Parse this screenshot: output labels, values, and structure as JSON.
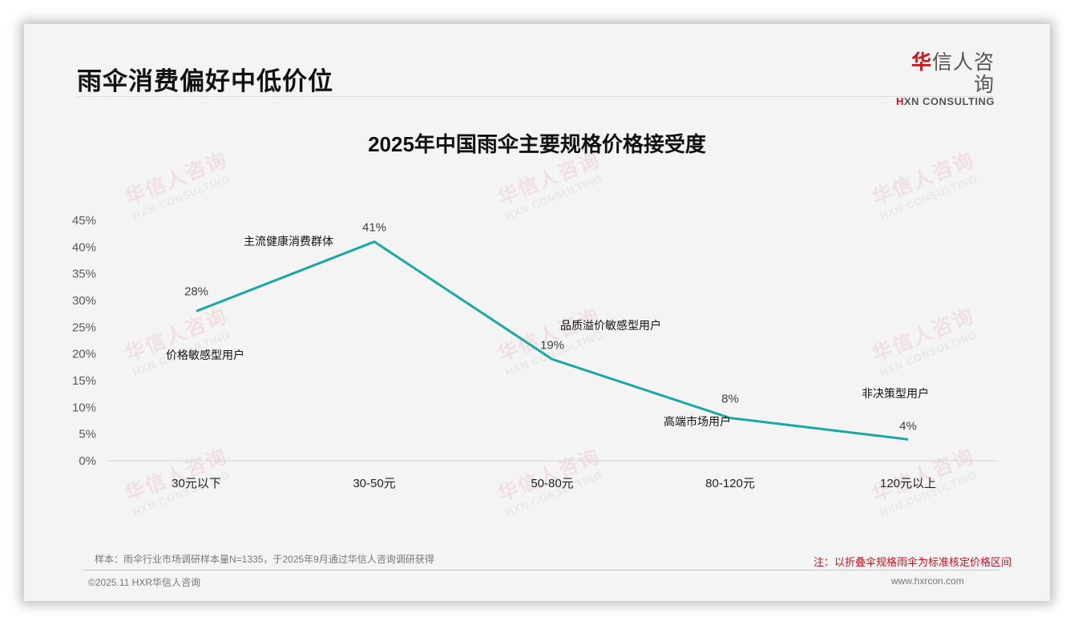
{
  "header": {
    "title": "雨伞消费偏好中低价位",
    "logo_cn_first": "华",
    "logo_cn_rest": "信人咨询",
    "logo_en_first": "H",
    "logo_en_rest": "XN CONSULTING"
  },
  "watermark": {
    "cn": "华信人咨询",
    "en": "HXN CONSULTING"
  },
  "chart_data": {
    "type": "line",
    "title": "2025年中国雨伞主要规格价格接受度",
    "xlabel": "",
    "ylabel": "",
    "categories": [
      "30元以下",
      "30-50元",
      "50-80元",
      "80-120元",
      "120元以上"
    ],
    "series": [
      {
        "name": "价格接受度",
        "values": [
          28,
          41,
          19,
          8,
          4
        ],
        "color": "#1aa8a3"
      }
    ],
    "data_labels": [
      "28%",
      "41%",
      "19%",
      "8%",
      "4%"
    ],
    "annotations": [
      "价格敏感型用户",
      "主流健康消费群体",
      "品质溢价敏感型用户",
      "高端市场用户",
      "非决策型用户"
    ],
    "yticks": [
      "0%",
      "5%",
      "10%",
      "15%",
      "20%",
      "25%",
      "30%",
      "35%",
      "40%",
      "45%"
    ],
    "ylim": [
      0,
      45
    ],
    "grid": false,
    "legend": "none"
  },
  "footer": {
    "sample_note": "样本：雨伞行业市场调研样本量N=1335，于2025年9月通过华信人咨询调研获得",
    "remark": "注：以折叠伞规格雨伞为标准核定价格区间",
    "copyright": "©2025.11 HXR华信人咨询",
    "website": "www.hxrcon.com"
  }
}
